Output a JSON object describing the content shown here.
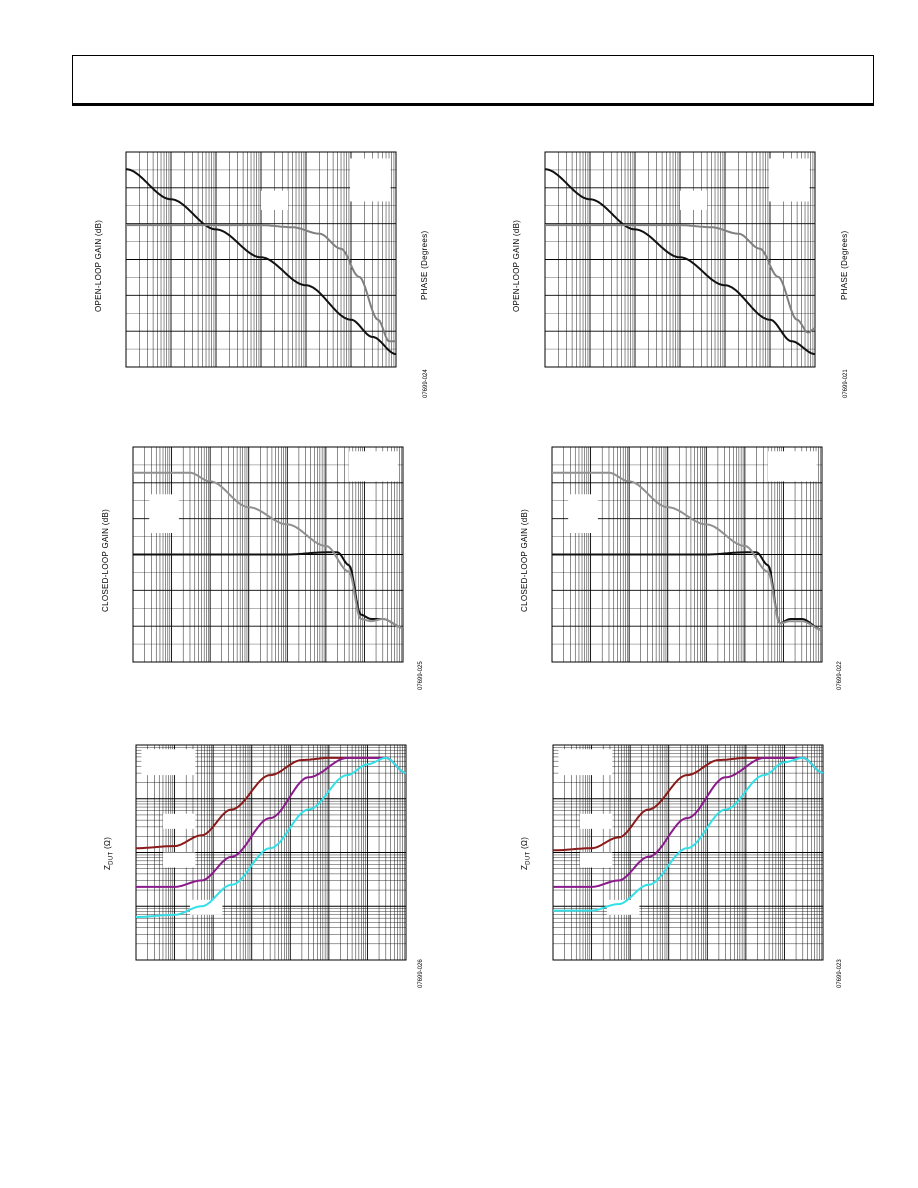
{
  "page": {},
  "colors": {
    "gain_trace": "#111111",
    "phase_trace": "#808080",
    "z_trace_1": "#8b1a1a",
    "z_trace_2": "#8b1a8b",
    "z_trace_3": "#33e0e8"
  },
  "labels": {
    "ol_gain": "OPEN-LOOP GAIN (dB)",
    "phase": "PHASE (Degrees)",
    "cl_gain": "CLOSED-LOOP GAIN (dB)",
    "zdut_main": "Z",
    "zdut_sub": "DUT",
    "zdut_unit": " (Ω)",
    "ids": {
      "left_ol": "07699-024",
      "left_cl": "07699-025",
      "left_z": "07699-026",
      "right_ol": "07699-021",
      "right_cl": "07699-022",
      "right_z": "07699-023"
    }
  },
  "chart_data": [
    {
      "id": "left_ol",
      "type": "line",
      "xscale": "log",
      "xlim": [
        1,
        1000000
      ],
      "ylim": [
        0,
        100
      ],
      "grid": true,
      "series": [
        {
          "color": "#111111",
          "x": [
            1,
            10,
            100,
            1000,
            10000,
            100000,
            300000,
            1000000
          ],
          "y": [
            92,
            78,
            64,
            51,
            38,
            22,
            14,
            6
          ]
        },
        {
          "color": "#808080",
          "x": [
            1,
            10,
            100,
            1000,
            5000,
            20000,
            60000,
            150000,
            400000,
            700000,
            1000000
          ],
          "y": [
            66,
            66,
            66,
            66,
            65,
            62,
            55,
            42,
            22,
            12,
            12
          ]
        }
      ]
    },
    {
      "id": "left_cl",
      "type": "line",
      "xscale": "log",
      "xlim": [
        1,
        10000000
      ],
      "ylim": [
        0,
        100
      ],
      "grid": true,
      "series": [
        {
          "color": "#111111",
          "x": [
            1,
            10,
            100,
            1000,
            10000,
            100000,
            200000,
            400000,
            800000,
            1500000,
            3000000,
            10000000
          ],
          "y": [
            50,
            50,
            50,
            50,
            50,
            51,
            51,
            45,
            22,
            20,
            20,
            16
          ]
        },
        {
          "color": "#909090",
          "x": [
            1,
            10,
            30,
            100,
            1000,
            10000,
            100000,
            400000,
            800000,
            1500000,
            3000000,
            10000000
          ],
          "y": [
            88,
            88,
            88,
            84,
            72,
            64,
            54,
            42,
            20,
            19,
            20,
            16
          ]
        }
      ]
    },
    {
      "id": "left_z",
      "type": "line",
      "xscale": "log",
      "xlim": [
        1,
        10000000
      ],
      "ylim": [
        0,
        100
      ],
      "grid": true,
      "series": [
        {
          "color": "#8b1a1a",
          "x": [
            1,
            10,
            50,
            300,
            3000,
            20000,
            100000,
            300000,
            1000000,
            3000000,
            10000000
          ],
          "y": [
            52,
            53,
            58,
            70,
            86,
            93,
            94,
            94,
            94,
            94,
            87
          ]
        },
        {
          "color": "#8b1a8b",
          "x": [
            1,
            10,
            50,
            300,
            3000,
            30000,
            300000,
            1000000,
            3000000,
            10000000
          ],
          "y": [
            34,
            34,
            37,
            48,
            66,
            85,
            94,
            94,
            94,
            87
          ]
        },
        {
          "color": "#33e0e8",
          "x": [
            1,
            10,
            50,
            300,
            3000,
            30000,
            300000,
            1000000,
            3000000,
            10000000
          ],
          "y": [
            20,
            21,
            25,
            35,
            52,
            70,
            86,
            91,
            94,
            87
          ]
        }
      ]
    },
    {
      "id": "right_ol",
      "type": "line",
      "xscale": "log",
      "xlim": [
        1,
        1000000
      ],
      "ylim": [
        0,
        100
      ],
      "grid": true,
      "series": [
        {
          "color": "#111111",
          "x": [
            1,
            10,
            100,
            1000,
            10000,
            100000,
            300000,
            1000000
          ],
          "y": [
            92,
            78,
            64,
            51,
            38,
            22,
            12,
            6
          ]
        },
        {
          "color": "#808080",
          "x": [
            1,
            10,
            100,
            1000,
            5000,
            20000,
            60000,
            150000,
            400000,
            700000,
            1000000
          ],
          "y": [
            66,
            66,
            66,
            66,
            65,
            62,
            55,
            42,
            22,
            16,
            18
          ]
        }
      ]
    },
    {
      "id": "right_cl",
      "type": "line",
      "xscale": "log",
      "xlim": [
        1,
        10000000
      ],
      "ylim": [
        0,
        100
      ],
      "grid": true,
      "series": [
        {
          "color": "#111111",
          "x": [
            1,
            10,
            100,
            1000,
            10000,
            100000,
            200000,
            400000,
            800000,
            1500000,
            3000000,
            10000000
          ],
          "y": [
            50,
            50,
            50,
            50,
            50,
            51,
            51,
            45,
            18,
            20,
            20,
            15
          ]
        },
        {
          "color": "#909090",
          "x": [
            1,
            10,
            30,
            100,
            1000,
            10000,
            100000,
            400000,
            800000,
            1500000,
            3000000,
            10000000
          ],
          "y": [
            88,
            88,
            88,
            84,
            72,
            64,
            54,
            42,
            18,
            19,
            19,
            15
          ]
        }
      ]
    },
    {
      "id": "right_z",
      "type": "line",
      "xscale": "log",
      "xlim": [
        1,
        10000000
      ],
      "ylim": [
        0,
        100
      ],
      "grid": true,
      "series": [
        {
          "color": "#8b1a1a",
          "x": [
            1,
            10,
            50,
            300,
            3000,
            20000,
            100000,
            300000,
            1000000,
            3000000,
            10000000
          ],
          "y": [
            51,
            52,
            57,
            70,
            86,
            93,
            94,
            94,
            94,
            94,
            87
          ]
        },
        {
          "color": "#8b1a8b",
          "x": [
            1,
            10,
            50,
            300,
            3000,
            30000,
            300000,
            1000000,
            3000000,
            10000000
          ],
          "y": [
            34,
            34,
            37,
            48,
            66,
            85,
            94,
            94,
            94,
            87
          ]
        },
        {
          "color": "#33e0e8",
          "x": [
            1,
            10,
            50,
            300,
            3000,
            30000,
            300000,
            1000000,
            3000000,
            10000000
          ],
          "y": [
            23,
            23,
            26,
            35,
            52,
            70,
            86,
            92,
            94,
            87
          ]
        }
      ]
    }
  ]
}
